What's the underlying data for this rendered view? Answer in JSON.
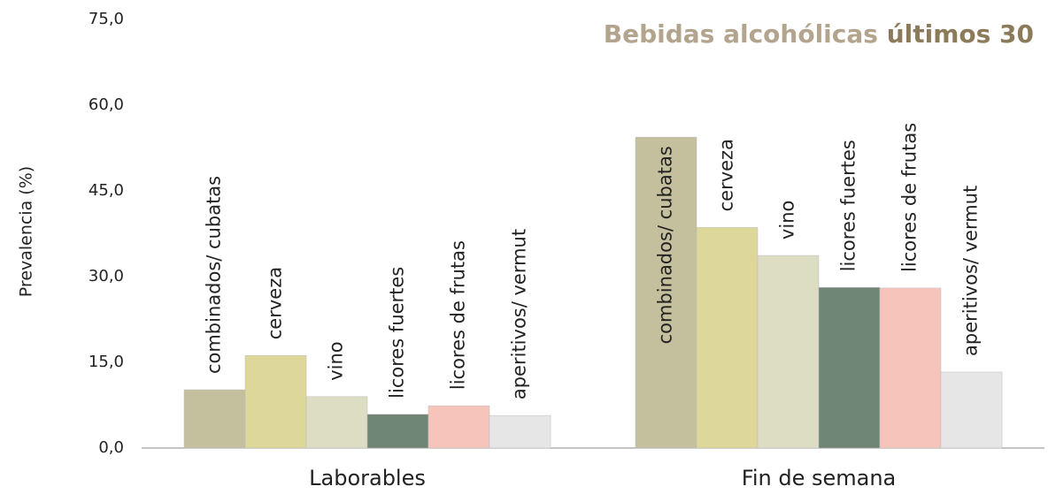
{
  "chart_data": {
    "type": "bar",
    "title": [
      "Bebidas alcohólicas",
      "últimos 30"
    ],
    "title_colors": [
      "#b3a48e",
      "#8c7b5b"
    ],
    "y_label": "Prevalencia (%)",
    "categories": [
      "Laborables",
      "Fin de semana"
    ],
    "series": [
      {
        "name": "combinados/ cubatas",
        "color": "#c4c09e",
        "values": [
          10.2,
          54.4
        ]
      },
      {
        "name": "cerveza",
        "color": "#ddd79a",
        "values": [
          16.2,
          38.6
        ]
      },
      {
        "name": "vino",
        "color": "#ddddc4",
        "values": [
          9.0,
          33.7
        ]
      },
      {
        "name": "licores fuertes",
        "color": "#6f8677",
        "values": [
          5.9,
          28.1
        ]
      },
      {
        "name": "licores de frutas",
        "color": "#f7c4bb",
        "values": [
          7.4,
          28.0
        ]
      },
      {
        "name": "aperitivos/ vermut",
        "color": "#e6e6e6",
        "values": [
          5.7,
          13.3
        ]
      }
    ],
    "ylim": [
      0,
      75
    ],
    "yticks": [
      {
        "value": 0,
        "label": "0,0"
      },
      {
        "value": 15,
        "label": "15,0"
      },
      {
        "value": 30,
        "label": "30,0"
      },
      {
        "value": 45,
        "label": "45,0"
      },
      {
        "value": 60,
        "label": "60,0"
      },
      {
        "value": 75,
        "label": "75,0"
      }
    ]
  }
}
